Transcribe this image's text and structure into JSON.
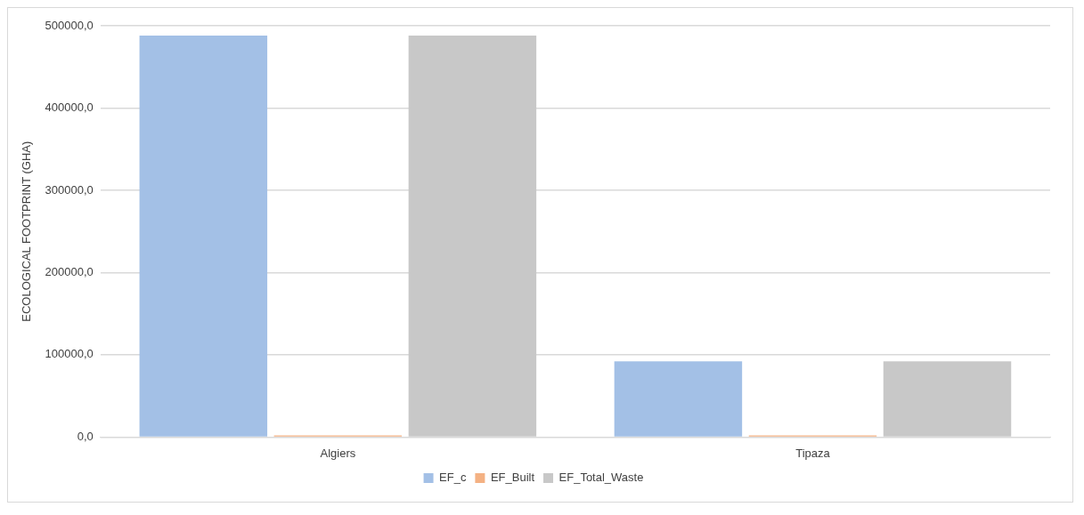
{
  "chart_data": {
    "type": "bar",
    "ylabel": "ECOLOGICAL FOOTPRINT (GHA)",
    "categories": [
      "Algiers",
      "Tipaza"
    ],
    "series": [
      {
        "name": "EF_c",
        "color": "#a3c0e6",
        "values": [
          488000,
          92000
        ]
      },
      {
        "name": "EF_Built",
        "color": "#f4b183",
        "values": [
          2000,
          2000
        ]
      },
      {
        "name": "EF_Total_Waste",
        "color": "#c8c8c8",
        "values": [
          488000,
          92000
        ]
      }
    ],
    "ylim": [
      0,
      500000
    ],
    "yticks": [
      {
        "value": 0,
        "label": "0,0"
      },
      {
        "value": 100000,
        "label": "100000,0"
      },
      {
        "value": 200000,
        "label": "200000,0"
      },
      {
        "value": 300000,
        "label": "300000,0"
      },
      {
        "value": 400000,
        "label": "400000,0"
      },
      {
        "value": 500000,
        "label": "500000,0"
      }
    ],
    "grid": "y",
    "legend": "bottom"
  }
}
